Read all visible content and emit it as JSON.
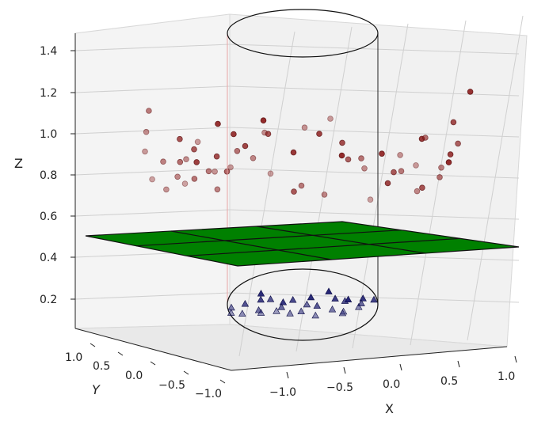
{
  "chart_data": {
    "type": "scatter",
    "projection": "3d",
    "xlabel": "X",
    "ylabel": "Y",
    "zlabel": "Z",
    "xticks": [
      "−1.0",
      "−0.5",
      "0.0",
      "0.5",
      "1.0"
    ],
    "yticks": [
      "1.0",
      "0.5",
      "0.0",
      "−0.5",
      "−1.0"
    ],
    "zticks": [
      "0.2",
      "0.4",
      "0.6",
      "0.8",
      "1.0",
      "1.2",
      "1.4"
    ],
    "xlim": [
      -1.2,
      1.2
    ],
    "ylim": [
      -1.2,
      1.2
    ],
    "zlim": [
      0.1,
      1.45
    ],
    "grid": true,
    "plane": {
      "z": 0.5,
      "color": "#008000"
    },
    "cylinder": {
      "radius": 0.42,
      "z_bottom": 0.12,
      "z_top": 1.45
    },
    "series": [
      {
        "marker": "circle",
        "color": "#8b1a1a",
        "points": [
          [
            -1.02,
            0.3,
            1.28
          ],
          [
            -0.98,
            0.6,
            1.18
          ],
          [
            -0.95,
            0.8,
            1.08
          ],
          [
            -0.92,
            -0.3,
            1.05
          ],
          [
            -0.9,
            0.4,
            0.98
          ],
          [
            -0.88,
            0.9,
            0.92
          ],
          [
            -0.86,
            -0.6,
            0.88
          ],
          [
            -0.84,
            0.1,
            0.95
          ],
          [
            -0.82,
            0.7,
            0.84
          ],
          [
            -0.8,
            -0.2,
            1.0
          ],
          [
            -0.78,
            0.5,
            0.9
          ],
          [
            -0.75,
            -0.8,
            1.1
          ],
          [
            -0.72,
            0.2,
            0.86
          ],
          [
            -0.7,
            0.6,
            1.02
          ],
          [
            -0.68,
            -0.4,
            0.94
          ],
          [
            -0.65,
            0.9,
            0.9
          ],
          [
            -0.62,
            -0.7,
            1.05
          ],
          [
            -0.6,
            0.3,
            0.92
          ],
          [
            -0.58,
            0.8,
            1.15
          ],
          [
            -0.55,
            -0.1,
            0.88
          ],
          [
            -0.52,
            0.4,
            0.82
          ],
          [
            -0.5,
            -0.5,
            1.0
          ],
          [
            -0.48,
            0.7,
            0.96
          ],
          [
            -0.45,
            -0.9,
            1.12
          ],
          [
            -0.42,
            0.2,
            1.04
          ],
          [
            -0.35,
            0.8,
            1.0
          ],
          [
            -0.3,
            -0.3,
            1.1
          ],
          [
            -0.25,
            0.5,
            1.03
          ],
          [
            -0.2,
            -0.7,
            0.95
          ],
          [
            -0.15,
            0.6,
            1.2
          ],
          [
            -0.1,
            -0.2,
            0.76
          ],
          [
            -0.05,
            0.9,
            0.98
          ],
          [
            0.0,
            -0.6,
            1.08
          ],
          [
            0.05,
            0.3,
            0.85
          ],
          [
            0.1,
            -0.9,
            0.92
          ],
          [
            0.15,
            0.7,
            1.25
          ],
          [
            0.2,
            -0.4,
            1.05
          ],
          [
            0.25,
            0.5,
            0.82
          ],
          [
            0.3,
            -0.1,
            0.98
          ],
          [
            0.35,
            0.8,
            1.32
          ],
          [
            0.4,
            -0.8,
            0.95
          ],
          [
            0.45,
            0.2,
            1.02
          ],
          [
            0.5,
            -0.5,
            0.8
          ],
          [
            0.55,
            0.6,
            1.0
          ],
          [
            0.6,
            -0.2,
            0.9
          ],
          [
            0.65,
            0.9,
            0.84
          ],
          [
            0.7,
            -0.7,
            1.06
          ],
          [
            0.75,
            0.3,
            0.96
          ],
          [
            0.78,
            -0.3,
            0.8
          ],
          [
            0.82,
            0.7,
            1.1
          ],
          [
            0.85,
            -0.9,
            0.9
          ],
          [
            0.88,
            0.1,
            1.15
          ],
          [
            0.9,
            0.5,
            0.86
          ],
          [
            0.92,
            -0.6,
            0.98
          ],
          [
            0.95,
            0.8,
            1.05
          ],
          [
            0.98,
            -0.4,
            1.2
          ],
          [
            1.0,
            0.2,
            0.92
          ],
          [
            1.02,
            -0.8,
            1.35
          ],
          [
            1.05,
            0.4,
            1.0
          ],
          [
            1.07,
            -0.1,
            1.1
          ]
        ]
      },
      {
        "marker": "triangle",
        "color": "#1a1a6e",
        "points": [
          [
            -0.4,
            0.2,
            0.2
          ],
          [
            -0.36,
            -0.1,
            0.17
          ],
          [
            -0.32,
            0.3,
            0.16
          ],
          [
            -0.28,
            -0.2,
            0.19
          ],
          [
            -0.25,
            0.1,
            0.15
          ],
          [
            -0.2,
            0.35,
            0.18
          ],
          [
            -0.16,
            -0.3,
            0.14
          ],
          [
            -0.12,
            0.05,
            0.17
          ],
          [
            -0.08,
            -0.15,
            0.2
          ],
          [
            -0.04,
            0.25,
            0.15
          ],
          [
            0.0,
            -0.35,
            0.18
          ],
          [
            0.04,
            0.1,
            0.21
          ],
          [
            0.08,
            -0.05,
            0.16
          ],
          [
            0.12,
            0.3,
            0.14
          ],
          [
            0.16,
            -0.25,
            0.19
          ],
          [
            0.2,
            0.15,
            0.17
          ],
          [
            0.24,
            -0.1,
            0.2
          ],
          [
            0.28,
            0.28,
            0.16
          ],
          [
            0.32,
            -0.3,
            0.18
          ],
          [
            0.36,
            0.05,
            0.21
          ],
          [
            0.4,
            -0.2,
            0.19
          ],
          [
            0.38,
            0.3,
            0.23
          ],
          [
            -0.3,
            -0.35,
            0.22
          ],
          [
            -0.1,
            0.4,
            0.21
          ],
          [
            0.1,
            -0.4,
            0.23
          ],
          [
            0.3,
            0.38,
            0.2
          ],
          [
            -0.2,
            -0.05,
            0.23
          ],
          [
            0.02,
            0.2,
            0.16
          ],
          [
            0.22,
            -0.38,
            0.15
          ],
          [
            -0.38,
            0.35,
            0.18
          ]
        ]
      }
    ]
  }
}
